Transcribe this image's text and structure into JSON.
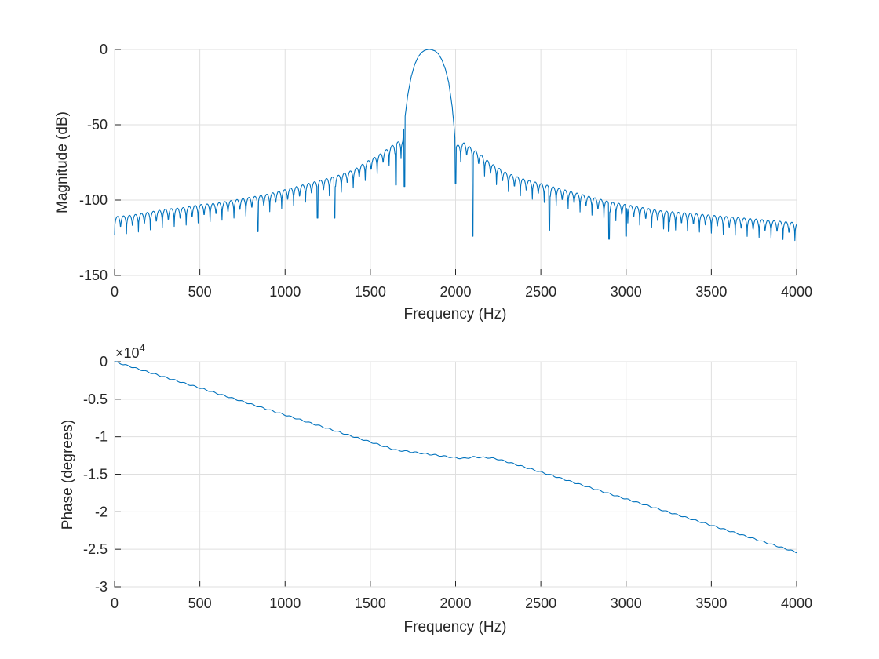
{
  "chart_data": [
    {
      "type": "line",
      "xlabel": "Frequency (Hz)",
      "ylabel": "Magnitude (dB)",
      "xlim": [
        0,
        4000
      ],
      "ylim": [
        -150,
        0
      ],
      "xticks": [
        "0",
        "500",
        "1000",
        "1500",
        "2000",
        "2500",
        "3000",
        "3500",
        "4000"
      ],
      "yticks": [
        "0",
        "-50",
        "-100",
        "-150"
      ],
      "grid": true,
      "color": "#0072bd",
      "series": [
        {
          "x": [
            0,
            100,
            200,
            300,
            400,
            500,
            600,
            700,
            800,
            900,
            1000,
            1100,
            1200,
            1300,
            1400,
            1500,
            1550,
            1600,
            1650,
            1690,
            1700,
            1720,
            1740,
            1760,
            1780,
            1800,
            1820,
            1840,
            1850,
            1860,
            1880,
            1900,
            1920,
            1940,
            1960,
            1980,
            1990,
            2000,
            2050,
            2100,
            2150,
            2200,
            2300,
            2400,
            2500,
            2600,
            2700,
            2800,
            2900,
            3000,
            3100,
            3200,
            3300,
            3400,
            3500,
            3600,
            3700,
            3800,
            3900,
            4000
          ],
          "y": [
            -111,
            -110,
            -108,
            -106,
            -105,
            -103,
            -102,
            -100,
            -98,
            -96,
            -93,
            -90,
            -87,
            -84,
            -80,
            -73,
            -70,
            -66,
            -62,
            -60,
            -48,
            -30,
            -18,
            -10,
            -5,
            -2,
            -0.5,
            0,
            0,
            -0.2,
            -1,
            -3,
            -7,
            -13,
            -22,
            -38,
            -50,
            -64,
            -62,
            -66,
            -70,
            -75,
            -82,
            -86,
            -89,
            -92,
            -95,
            -98,
            -101,
            -103,
            -105,
            -107,
            -108,
            -109,
            -110,
            -111,
            -112,
            -113,
            -114,
            -115
          ]
        }
      ],
      "dips_db": [
        {
          "x": 840,
          "y": -121
        },
        {
          "x": 1190,
          "y": -112
        },
        {
          "x": 1290,
          "y": -112
        },
        {
          "x": 1650,
          "y": -90
        },
        {
          "x": 1700,
          "y": -91
        },
        {
          "x": 2000,
          "y": -89
        },
        {
          "x": 2100,
          "y": -124
        },
        {
          "x": 2550,
          "y": -120
        },
        {
          "x": 2900,
          "y": -126
        },
        {
          "x": 3000,
          "y": -124
        },
        {
          "x": 3250,
          "y": -121
        }
      ]
    },
    {
      "type": "line",
      "xlabel": "Frequency (Hz)",
      "ylabel": "Phase (degrees)",
      "xlim": [
        0,
        4000
      ],
      "ylim": [
        -3,
        0
      ],
      "scale_label": "×10",
      "scale_exponent": "4",
      "xticks": [
        "0",
        "500",
        "1000",
        "1500",
        "2000",
        "2500",
        "3000",
        "3500",
        "4000"
      ],
      "yticks": [
        "0",
        "-0.5",
        "-1",
        "-1.5",
        "-2",
        "-2.5",
        "-3"
      ],
      "grid": true,
      "color": "#0072bd",
      "series": [
        {
          "x": [
            0,
            500,
            1000,
            1500,
            1650,
            1700,
            2000,
            2050,
            2100,
            2200,
            2250,
            2500,
            3000,
            3500,
            4000
          ],
          "y": [
            0,
            -0.35,
            -0.71,
            -1.07,
            -1.18,
            -1.19,
            -1.28,
            -1.29,
            -1.27,
            -1.28,
            -1.3,
            -1.47,
            -1.83,
            -2.18,
            -2.54
          ]
        }
      ]
    }
  ]
}
